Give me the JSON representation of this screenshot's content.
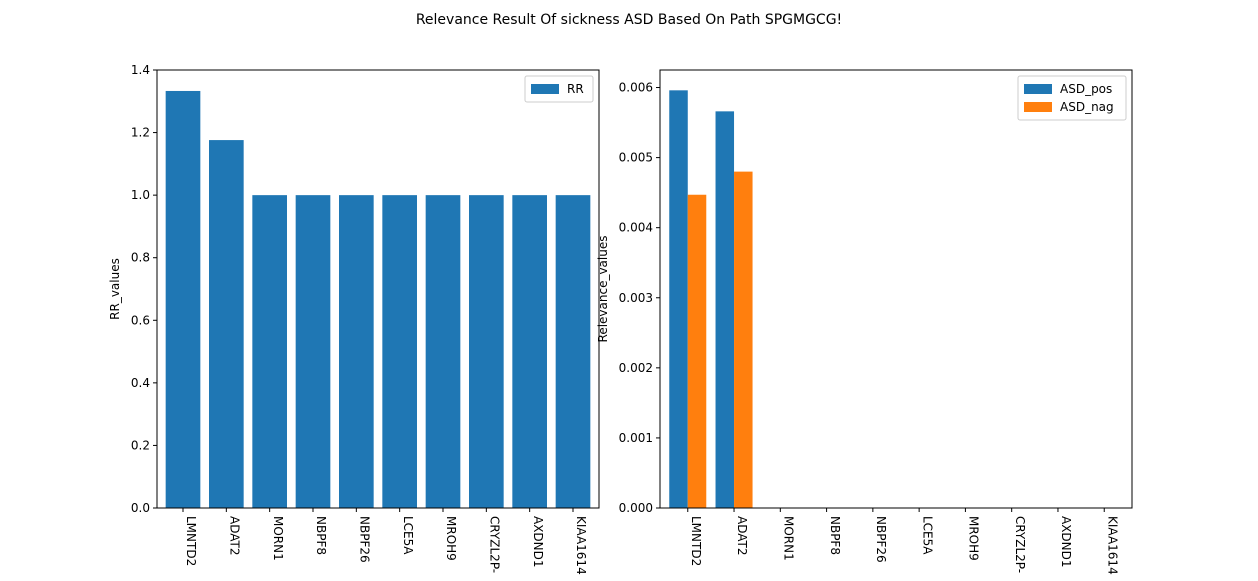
{
  "figure": {
    "title": "Relevance Result Of sickness ASD Based On Path SPGMGCG!"
  },
  "chart_data": [
    {
      "type": "bar",
      "categories": [
        "LMNTD2",
        "ADAT2",
        "MORN1",
        "NBPF8",
        "NBPF26",
        "LCE5A",
        "MROH9",
        "CRYZL2P-",
        "AXDND1",
        "KIAA1614"
      ],
      "series": [
        {
          "name": "RR",
          "values": [
            1.333,
            1.176,
            1.0,
            1.0,
            1.0,
            1.0,
            1.0,
            1.0,
            1.0,
            1.0
          ],
          "color": "#1f77b4"
        }
      ],
      "ylabel": "RR_values",
      "ylim": [
        0,
        1.4
      ],
      "yticks": [
        0.0,
        0.2,
        0.4,
        0.6,
        0.8,
        1.0,
        1.2,
        1.4
      ],
      "ytick_labels": [
        "0.0",
        "0.2",
        "0.4",
        "0.6",
        "0.8",
        "1.0",
        "1.2",
        "1.4"
      ],
      "xlabel": "",
      "grid": false,
      "legend_position": "top-right",
      "xtick_rotation": 90
    },
    {
      "type": "bar",
      "categories": [
        "LMNTD2",
        "ADAT2",
        "MORN1",
        "NBPF8",
        "NBPF26",
        "LCE5A",
        "MROH9",
        "CRYZL2P-",
        "AXDND1",
        "KIAA1614"
      ],
      "series": [
        {
          "name": "ASD_pos",
          "values": [
            0.00596,
            0.00566,
            0,
            0,
            0,
            0,
            0,
            0,
            0,
            0
          ],
          "color": "#1f77b4"
        },
        {
          "name": "ASD_nag",
          "values": [
            0.00447,
            0.0048,
            0,
            0,
            0,
            0,
            0,
            0,
            0,
            0
          ],
          "color": "#ff7f0e"
        }
      ],
      "ylabel": "Relevance_values",
      "ylim": [
        0,
        0.00625
      ],
      "yticks": [
        0.0,
        0.001,
        0.002,
        0.003,
        0.004,
        0.005,
        0.006
      ],
      "ytick_labels": [
        "0.000",
        "0.001",
        "0.002",
        "0.003",
        "0.004",
        "0.005",
        "0.006"
      ],
      "xlabel": "",
      "grid": false,
      "legend_position": "top-right",
      "xtick_rotation": 90
    }
  ]
}
